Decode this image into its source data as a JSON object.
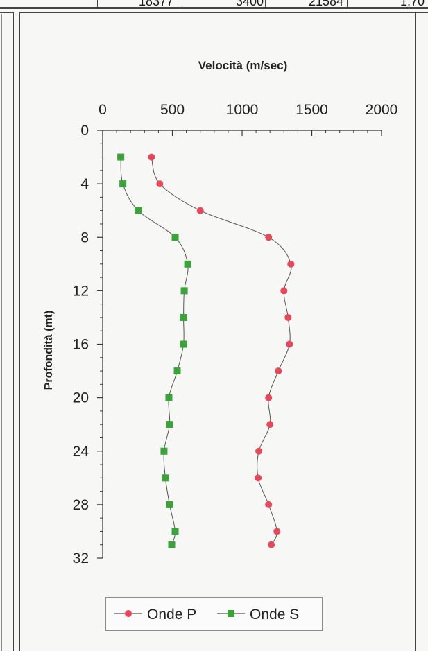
{
  "top_strip": {
    "cells": [
      "18377",
      "3400",
      "21584",
      "1,70"
    ]
  },
  "colors": {
    "onde_p": "#e8495a",
    "onde_s": "#3aa33a",
    "line": "#555555",
    "axis": "#333333"
  },
  "chart_data": {
    "type": "scatter",
    "title": "Velocità (m/sec)",
    "xlabel": "Velocità (m/sec)",
    "ylabel": "Profondità (mt)",
    "x_axis_position": "top",
    "y_axis_inverted": true,
    "xlim": [
      0,
      2000
    ],
    "ylim": [
      0,
      32
    ],
    "x_ticks": [
      0,
      500,
      1000,
      1500,
      2000
    ],
    "y_ticks": [
      0,
      4,
      8,
      12,
      16,
      20,
      24,
      28,
      32
    ],
    "legend_position": "bottom",
    "series": [
      {
        "name": "Onde P",
        "marker": "circle",
        "color": "#e8495a",
        "points": [
          {
            "x": 350,
            "y": 2
          },
          {
            "x": 410,
            "y": 4
          },
          {
            "x": 700,
            "y": 6
          },
          {
            "x": 1190,
            "y": 8
          },
          {
            "x": 1350,
            "y": 10
          },
          {
            "x": 1300,
            "y": 12
          },
          {
            "x": 1330,
            "y": 14
          },
          {
            "x": 1340,
            "y": 16
          },
          {
            "x": 1260,
            "y": 18
          },
          {
            "x": 1190,
            "y": 20
          },
          {
            "x": 1200,
            "y": 22
          },
          {
            "x": 1120,
            "y": 24
          },
          {
            "x": 1115,
            "y": 26
          },
          {
            "x": 1190,
            "y": 28
          },
          {
            "x": 1250,
            "y": 30
          },
          {
            "x": 1210,
            "y": 31
          }
        ]
      },
      {
        "name": "Onde S",
        "marker": "square",
        "color": "#3aa33a",
        "points": [
          {
            "x": 130,
            "y": 2
          },
          {
            "x": 145,
            "y": 4
          },
          {
            "x": 255,
            "y": 6
          },
          {
            "x": 520,
            "y": 8
          },
          {
            "x": 610,
            "y": 10
          },
          {
            "x": 585,
            "y": 12
          },
          {
            "x": 580,
            "y": 14
          },
          {
            "x": 580,
            "y": 16
          },
          {
            "x": 535,
            "y": 18
          },
          {
            "x": 475,
            "y": 20
          },
          {
            "x": 480,
            "y": 22
          },
          {
            "x": 440,
            "y": 24
          },
          {
            "x": 450,
            "y": 26
          },
          {
            "x": 480,
            "y": 28
          },
          {
            "x": 520,
            "y": 30
          },
          {
            "x": 495,
            "y": 31
          }
        ]
      }
    ]
  }
}
